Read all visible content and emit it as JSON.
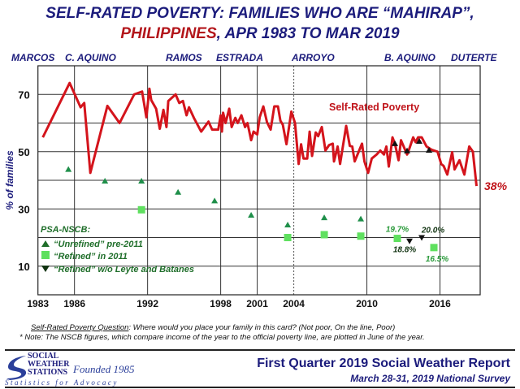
{
  "title": {
    "line1": "SELF-RATED POVERTY: FAMILIES WHO ARE “MAHIRAP”,",
    "line2_red": "PHILIPPINES",
    "line2_rest": ", APR 1983 TO MAR 2019"
  },
  "presidents": [
    "MARCOS",
    "C. AQUINO",
    "RAMOS",
    "ESTRADA",
    "ARROYO",
    "B. AQUINO",
    "DUTERTE"
  ],
  "colors": {
    "title": "#1c1c7c",
    "line": "#d4141c",
    "unrefined": "#1f8f4a",
    "refined": "#5fe05f",
    "black": "#111111",
    "legend_text": "#1f6e2a",
    "last_label": "#c0141a"
  },
  "chart_data": {
    "type": "line",
    "ylabel": "% of families",
    "xlim": [
      1983,
      2019.3
    ],
    "ylim": [
      0,
      80
    ],
    "grid": true,
    "x_ticks": [
      1983,
      1986,
      1992,
      1998,
      2001,
      2004,
      2010,
      2016
    ],
    "y_ticks": [
      10,
      30,
      50,
      70
    ],
    "series_label": "Self-Rated Poverty",
    "last_value_label": "38%",
    "series": [
      {
        "name": "Self-Rated Poverty",
        "x": [
          1983.4,
          1985.6,
          1986.5,
          1986.8,
          1987.3,
          1988.7,
          1989.7,
          1990.9,
          1991.55,
          1991.9,
          1992.15,
          1992.3,
          1992.7,
          1993.0,
          1993.3,
          1993.55,
          1993.7,
          1994.3,
          1994.6,
          1994.9,
          1995.2,
          1995.4,
          1995.8,
          1996.4,
          1997.0,
          1997.3,
          1997.8,
          1998.0,
          1998.1,
          1998.2,
          1998.4,
          1998.7,
          1998.9,
          1999.2,
          1999.4,
          1999.7,
          2000.0,
          2000.2,
          2000.5,
          2000.7,
          2001.0,
          2001.2,
          2001.5,
          2001.8,
          2002.1,
          2002.4,
          2002.7,
          2002.9,
          2003.1,
          2003.4,
          2003.8,
          2004.1,
          2004.4,
          2004.6,
          2004.8,
          2005.1,
          2005.3,
          2005.5,
          2005.8,
          2006.0,
          2006.3,
          2006.6,
          2006.9,
          2007.2,
          2007.3,
          2007.6,
          2007.8,
          2008.3,
          2008.6,
          2008.8,
          2009.0,
          2009.6,
          2009.8,
          2010.1,
          2010.4,
          2010.8,
          2011.1,
          2011.4,
          2011.6,
          2011.8,
          2012.1,
          2012.3,
          2012.6,
          2012.8,
          2013.0,
          2013.3,
          2013.4,
          2013.8,
          2014.0,
          2014.2,
          2014.5,
          2014.9,
          2015.3,
          2015.8,
          2016.1,
          2016.3,
          2016.6,
          2017.0,
          2017.2,
          2017.6,
          2018.0,
          2018.4,
          2018.7,
          2019.0
        ],
        "y": [
          55,
          74,
          65.5,
          67,
          42.6,
          66,
          60,
          70,
          71,
          62,
          72,
          68,
          65,
          58,
          64.6,
          58.6,
          67.7,
          70,
          67,
          67.7,
          62.7,
          65.5,
          61.8,
          57,
          60.5,
          57.7,
          57.7,
          62.7,
          57,
          63.6,
          60,
          65,
          58.6,
          61.8,
          60,
          62.7,
          58.6,
          60,
          54,
          57,
          56,
          62,
          65.8,
          60.3,
          57.7,
          65.8,
          65.8,
          60.8,
          59.4,
          52.6,
          64,
          60,
          45.7,
          52.6,
          47.6,
          47.6,
          57,
          48.5,
          56.7,
          55.4,
          58.6,
          50.4,
          52.3,
          52.8,
          46.6,
          51.8,
          45.7,
          59,
          52,
          51.8,
          46.6,
          52.8,
          46.6,
          42.6,
          47.6,
          49,
          50.4,
          49,
          51.8,
          44.8,
          55,
          52.8,
          47,
          54,
          52,
          49,
          50,
          55,
          53.3,
          55,
          55,
          51.8,
          50.7,
          50,
          45.7,
          45,
          42,
          49.8,
          43.8,
          47,
          42,
          51.8,
          50,
          38
        ]
      }
    ],
    "markers_on_line": {
      "x": [
        2012.3,
        2013.3,
        2014.3,
        2015.1
      ],
      "y": [
        52.8,
        50.3,
        53.6,
        50.5
      ]
    },
    "psa_nscb": {
      "heading": "PSA-NSCB:",
      "unrefined": {
        "label": "“Unrefined” pre-2011",
        "x": [
          1985.5,
          1988.5,
          1991.5,
          1994.5,
          1997.5,
          2000.5,
          2003.5,
          2006.5,
          2009.5
        ],
        "y": [
          43.8,
          39.7,
          39.7,
          35.8,
          32.8,
          27.8,
          24.4,
          26.9,
          26.5
        ]
      },
      "refined": {
        "label": "“Refined” in 2011",
        "x": [
          1991.5,
          2003.5,
          2006.5,
          2009.5,
          2012.5,
          2015.5
        ],
        "y": [
          29.7,
          20.0,
          21.0,
          20.5,
          19.7,
          16.5
        ],
        "value_labels": [
          "",
          "",
          "",
          "",
          "19.7%",
          "16.5%"
        ]
      },
      "refined_wo_leyte": {
        "label": "“Refined” w/o Leyte and Batanes",
        "x": [
          2013.5,
          2014.5
        ],
        "y": [
          18.8,
          20.0
        ],
        "value_labels": [
          "18.8%",
          "20.0%"
        ]
      }
    },
    "dashed_line_x": 2004
  },
  "notes": {
    "question_label": "Self-Rated Poverty Question",
    "question_text": ":  Where would you place your family in this card?  (Not poor, On the line, Poor)",
    "note": "*  Note: The NSCB figures, which compare income of the year to the official poverty line, are plotted  in June of the year."
  },
  "footer": {
    "logo_lines": [
      "SOCIAL",
      "WEATHER",
      "STATIONS"
    ],
    "logo_founded": "Founded 1985",
    "logo_tagline": "Statistics for Advocacy",
    "report_title": "First Quarter 2019 Social Weather Report",
    "report_subtitle": "March 28-31, 2019 National Survey"
  }
}
